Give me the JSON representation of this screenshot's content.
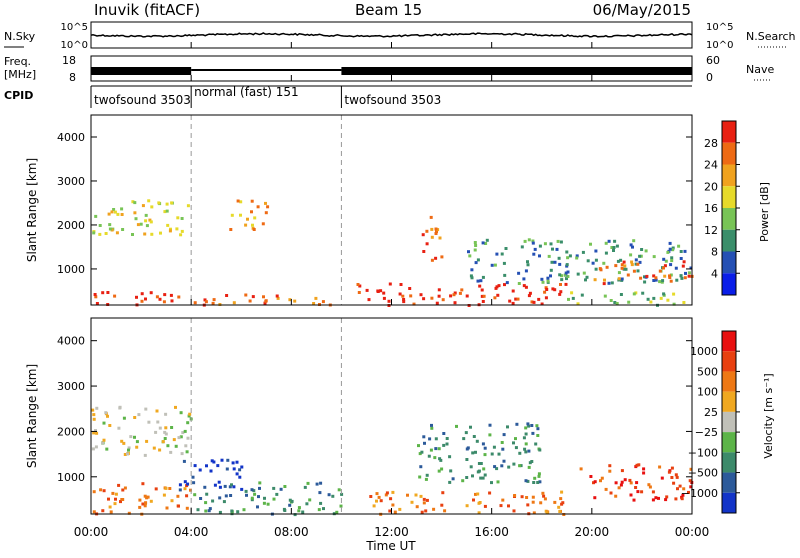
{
  "header": {
    "station": "Inuvik (fitACF)",
    "beam": "Beam 15",
    "date": "06/May/2015"
  },
  "summary": {
    "nsky_label": "N.Sky",
    "nsearch_label": "N.Search",
    "freq_label_1": "Freq.",
    "freq_label_2": "[MHz]",
    "nave_label": "Nave",
    "cpid_label": "CPID",
    "nsky_ticks": [
      "10^5",
      "10^0"
    ],
    "nsearch_ticks": [
      "10^5",
      "10^0"
    ],
    "freq_ticks": [
      "18",
      "8"
    ],
    "nave_ticks": [
      "60",
      "0"
    ]
  },
  "cpid_segments": [
    {
      "label": "twofsound 3503",
      "start_h": 0,
      "end_h": 4
    },
    {
      "label": "normal (fast) 151",
      "start_h": 4,
      "end_h": 10
    },
    {
      "label": "twofsound 3503",
      "start_h": 10,
      "end_h": 24
    }
  ],
  "chart_data": [
    {
      "type": "heatmap",
      "quantity": "Power",
      "xlabel": "Time UT",
      "ylabel": "Slant Range [km]",
      "xlim": [
        0,
        24
      ],
      "ylim": [
        180,
        4500
      ],
      "yticks": [
        "1000",
        "2000",
        "3000",
        "4000"
      ],
      "xticks": [
        "00:00",
        "04:00",
        "08:00",
        "12:00",
        "16:00",
        "20:00",
        "00:00"
      ],
      "colorbar": {
        "label": "Power [dB]",
        "ticks": [
          "4",
          "8",
          "12",
          "16",
          "20",
          "24",
          "28"
        ],
        "colors": [
          "#0a1ee8",
          "#2550b4",
          "#3a8e6a",
          "#78c456",
          "#e6da2a",
          "#f0a21e",
          "#ee6a14",
          "#e82012"
        ]
      },
      "regions": [
        {
          "t0": 0,
          "t1": 4,
          "r0": 200,
          "r1": 500,
          "level": 7
        },
        {
          "t0": 4,
          "t1": 10,
          "r0": 200,
          "r1": 450,
          "level": 6
        },
        {
          "t0": 10.5,
          "t1": 19,
          "r0": 200,
          "r1": 700,
          "level": 7
        },
        {
          "t0": 19,
          "t1": 24,
          "r0": 200,
          "r1": 500,
          "level": 3
        },
        {
          "t0": 0,
          "t1": 4,
          "r0": 1800,
          "r1": 2600,
          "level": 4
        },
        {
          "t0": 5.5,
          "t1": 7,
          "r0": 1900,
          "r1": 2600,
          "level": 5
        },
        {
          "t0": 13.2,
          "t1": 14,
          "r0": 1200,
          "r1": 2300,
          "level": 6
        },
        {
          "t0": 15,
          "t1": 24,
          "r0": 700,
          "r1": 1700,
          "level": 2
        },
        {
          "t0": 20,
          "t1": 24,
          "r0": 700,
          "r1": 1200,
          "level": 6
        }
      ]
    },
    {
      "type": "heatmap",
      "quantity": "Velocity",
      "xlabel": "Time UT",
      "ylabel": "Slant Range [km]",
      "xlim": [
        0,
        24
      ],
      "ylim": [
        180,
        4500
      ],
      "yticks": [
        "1000",
        "2000",
        "3000",
        "4000"
      ],
      "xticks": [
        "00:00",
        "04:00",
        "08:00",
        "12:00",
        "16:00",
        "20:00",
        "00:00"
      ],
      "colorbar": {
        "label": "Velocity [m s⁻¹]",
        "ticks": [
          "1000",
          "500",
          "100",
          "25",
          "−25",
          "−100",
          "−500",
          "−1000"
        ],
        "colors": [
          "#1234c8",
          "#2c5a9a",
          "#3c8a6a",
          "#5cb448",
          "#c0c0b8",
          "#f0a820",
          "#ee7814",
          "#e84010",
          "#e81010"
        ]
      },
      "regions": [
        {
          "t0": 0,
          "t1": 4,
          "r0": 1500,
          "r1": 2600,
          "level": 4
        },
        {
          "t0": 0,
          "t1": 4,
          "r0": 200,
          "r1": 900,
          "level": 6
        },
        {
          "t0": 4,
          "t1": 10,
          "r0": 200,
          "r1": 900,
          "level": 2
        },
        {
          "t0": 3.5,
          "t1": 6,
          "r0": 700,
          "r1": 1400,
          "level": 0
        },
        {
          "t0": 11,
          "t1": 19,
          "r0": 200,
          "r1": 700,
          "level": 6
        },
        {
          "t0": 19.5,
          "t1": 24,
          "r0": 500,
          "r1": 1300,
          "level": 7
        },
        {
          "t0": 13,
          "t1": 18,
          "r0": 900,
          "r1": 2200,
          "level": 2
        }
      ]
    }
  ]
}
